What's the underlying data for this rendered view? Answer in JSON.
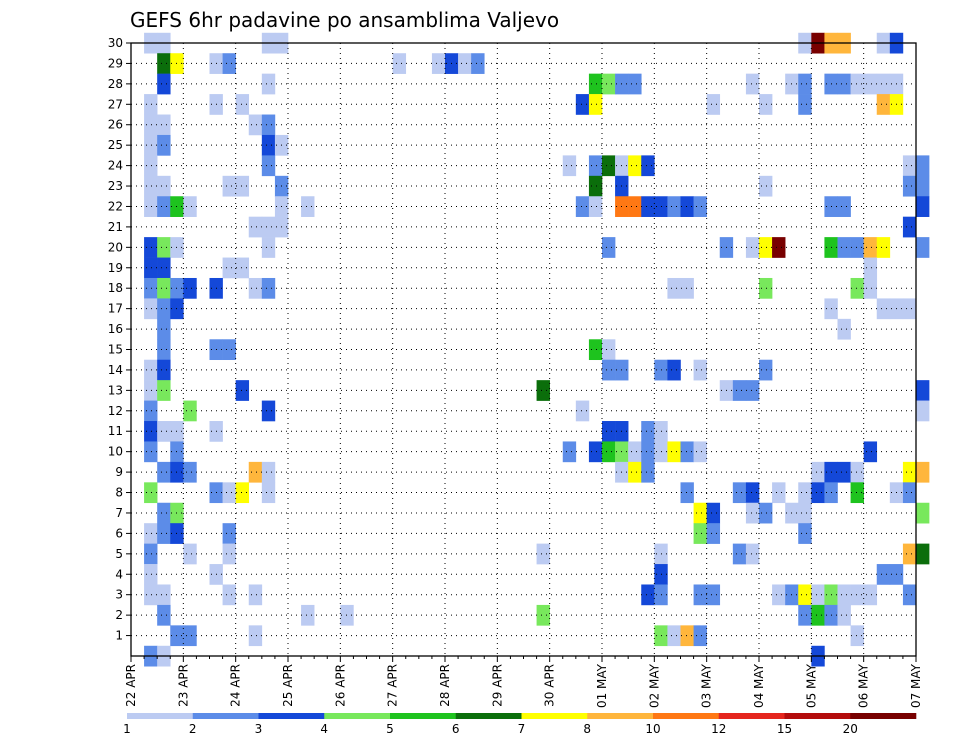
{
  "chart_data": {
    "type": "heatmap",
    "title": "GEFS 6hr padavine po ansamblima Valjevo",
    "xlabel": "",
    "ylabel": "",
    "x_tick_labels": [
      "22 APR",
      "23 APR",
      "24 APR",
      "25 APR",
      "26 APR",
      "27 APR",
      "28 APR",
      "29 APR",
      "30 APR",
      "01 MAY",
      "02 MAY",
      "03 MAY",
      "04 MAY",
      "05 MAY",
      "06 MAY",
      "07 MAY"
    ],
    "y_tick_labels": [
      "1",
      "2",
      "3",
      "4",
      "5",
      "6",
      "7",
      "8",
      "9",
      "10",
      "11",
      "12",
      "13",
      "14",
      "15",
      "16",
      "17",
      "18",
      "19",
      "20",
      "21",
      "22",
      "23",
      "24",
      "25",
      "26",
      "27",
      "28",
      "29",
      "30"
    ],
    "x_range": [
      "2024-04-22T00",
      "2024-05-07T00"
    ],
    "time_step_hours": 6,
    "y_range": [
      0,
      30
    ],
    "grid": "dotted",
    "colorbar": {
      "tick_labels": [
        "1",
        "2",
        "3",
        "4",
        "5",
        "6",
        "7",
        "8",
        "10",
        "12",
        "15",
        "20"
      ],
      "colors": [
        "#bccbf2",
        "#5c8ce8",
        "#1448d8",
        "#78e85c",
        "#1ec31e",
        "#0b6e0b",
        "#ffff00",
        "#ffb63c",
        "#ff7814",
        "#e5261e",
        "#b40c0c",
        "#780000"
      ]
    },
    "cells_level_index_note": "each cell: [member, time_step_index_from_22APR00, color_level_index]",
    "cells": [
      [
        30,
        1,
        0
      ],
      [
        30,
        2,
        0
      ],
      [
        30,
        10,
        0
      ],
      [
        30,
        11,
        0
      ],
      [
        30,
        51,
        0
      ],
      [
        30,
        52,
        11
      ],
      [
        30,
        53,
        7
      ],
      [
        30,
        54,
        7
      ],
      [
        30,
        57,
        0
      ],
      [
        30,
        58,
        2
      ],
      [
        29,
        2,
        5
      ],
      [
        29,
        3,
        6
      ],
      [
        29,
        6,
        0
      ],
      [
        29,
        7,
        1
      ],
      [
        29,
        20,
        0
      ],
      [
        29,
        23,
        0
      ],
      [
        29,
        24,
        2
      ],
      [
        29,
        25,
        0
      ],
      [
        29,
        26,
        1
      ],
      [
        28,
        2,
        2
      ],
      [
        28,
        10,
        0
      ],
      [
        28,
        35,
        4
      ],
      [
        28,
        36,
        3
      ],
      [
        28,
        37,
        1
      ],
      [
        28,
        38,
        1
      ],
      [
        28,
        47,
        0
      ],
      [
        28,
        50,
        0
      ],
      [
        28,
        51,
        1
      ],
      [
        28,
        53,
        1
      ],
      [
        28,
        54,
        1
      ],
      [
        28,
        55,
        0
      ],
      [
        28,
        56,
        0
      ],
      [
        28,
        57,
        0
      ],
      [
        28,
        58,
        0
      ],
      [
        27,
        1,
        0
      ],
      [
        27,
        6,
        0
      ],
      [
        27,
        8,
        0
      ],
      [
        27,
        34,
        2
      ],
      [
        27,
        35,
        6
      ],
      [
        27,
        44,
        0
      ],
      [
        27,
        48,
        0
      ],
      [
        27,
        51,
        1
      ],
      [
        27,
        57,
        7
      ],
      [
        27,
        58,
        6
      ],
      [
        26,
        1,
        0
      ],
      [
        26,
        2,
        0
      ],
      [
        26,
        9,
        0
      ],
      [
        26,
        10,
        1
      ],
      [
        25,
        1,
        0
      ],
      [
        25,
        2,
        1
      ],
      [
        25,
        10,
        2
      ],
      [
        25,
        11,
        0
      ],
      [
        24,
        1,
        0
      ],
      [
        24,
        10,
        1
      ],
      [
        24,
        33,
        0
      ],
      [
        24,
        35,
        1
      ],
      [
        24,
        36,
        5
      ],
      [
        24,
        37,
        0
      ],
      [
        24,
        38,
        6
      ],
      [
        24,
        39,
        2
      ],
      [
        24,
        59,
        0
      ],
      [
        24,
        60,
        1
      ],
      [
        23,
        1,
        0
      ],
      [
        23,
        2,
        0
      ],
      [
        23,
        7,
        0
      ],
      [
        23,
        8,
        0
      ],
      [
        23,
        11,
        1
      ],
      [
        23,
        35,
        5
      ],
      [
        23,
        37,
        2
      ],
      [
        23,
        48,
        0
      ],
      [
        23,
        59,
        1
      ],
      [
        23,
        60,
        1
      ],
      [
        22,
        1,
        0
      ],
      [
        22,
        2,
        1
      ],
      [
        22,
        3,
        4
      ],
      [
        22,
        4,
        0
      ],
      [
        22,
        11,
        0
      ],
      [
        22,
        13,
        0
      ],
      [
        22,
        34,
        1
      ],
      [
        22,
        35,
        0
      ],
      [
        22,
        37,
        8
      ],
      [
        22,
        38,
        8
      ],
      [
        22,
        39,
        2
      ],
      [
        22,
        40,
        2
      ],
      [
        22,
        41,
        1
      ],
      [
        22,
        42,
        2
      ],
      [
        22,
        43,
        1
      ],
      [
        22,
        53,
        1
      ],
      [
        22,
        54,
        1
      ],
      [
        22,
        60,
        2
      ],
      [
        21,
        9,
        0
      ],
      [
        21,
        10,
        0
      ],
      [
        21,
        11,
        0
      ],
      [
        21,
        59,
        2
      ],
      [
        20,
        1,
        2
      ],
      [
        20,
        2,
        3
      ],
      [
        20,
        3,
        0
      ],
      [
        20,
        10,
        0
      ],
      [
        20,
        36,
        1
      ],
      [
        20,
        45,
        1
      ],
      [
        20,
        47,
        0
      ],
      [
        20,
        48,
        6
      ],
      [
        20,
        49,
        11
      ],
      [
        20,
        53,
        4
      ],
      [
        20,
        54,
        1
      ],
      [
        20,
        55,
        1
      ],
      [
        20,
        56,
        7
      ],
      [
        20,
        57,
        6
      ],
      [
        20,
        60,
        1
      ],
      [
        19,
        1,
        2
      ],
      [
        19,
        2,
        2
      ],
      [
        19,
        7,
        0
      ],
      [
        19,
        8,
        0
      ],
      [
        19,
        56,
        0
      ],
      [
        18,
        1,
        1
      ],
      [
        18,
        2,
        3
      ],
      [
        18,
        3,
        1
      ],
      [
        18,
        4,
        2
      ],
      [
        18,
        6,
        2
      ],
      [
        18,
        9,
        0
      ],
      [
        18,
        10,
        1
      ],
      [
        18,
        41,
        0
      ],
      [
        18,
        42,
        0
      ],
      [
        18,
        48,
        3
      ],
      [
        18,
        55,
        3
      ],
      [
        18,
        56,
        0
      ],
      [
        17,
        1,
        0
      ],
      [
        17,
        2,
        1
      ],
      [
        17,
        3,
        2
      ],
      [
        17,
        53,
        0
      ],
      [
        17,
        57,
        0
      ],
      [
        17,
        58,
        0
      ],
      [
        17,
        59,
        0
      ],
      [
        16,
        2,
        1
      ],
      [
        16,
        54,
        0
      ],
      [
        15,
        2,
        1
      ],
      [
        15,
        6,
        1
      ],
      [
        15,
        7,
        1
      ],
      [
        15,
        35,
        4
      ],
      [
        15,
        36,
        0
      ],
      [
        14,
        1,
        0
      ],
      [
        14,
        2,
        2
      ],
      [
        14,
        36,
        1
      ],
      [
        14,
        37,
        1
      ],
      [
        14,
        40,
        1
      ],
      [
        14,
        41,
        2
      ],
      [
        14,
        43,
        0
      ],
      [
        14,
        48,
        1
      ],
      [
        13,
        1,
        0
      ],
      [
        13,
        2,
        3
      ],
      [
        13,
        8,
        2
      ],
      [
        13,
        31,
        5
      ],
      [
        13,
        45,
        0
      ],
      [
        13,
        46,
        1
      ],
      [
        13,
        47,
        1
      ],
      [
        13,
        60,
        2
      ],
      [
        12,
        1,
        1
      ],
      [
        12,
        4,
        3
      ],
      [
        12,
        10,
        2
      ],
      [
        12,
        34,
        0
      ],
      [
        12,
        60,
        0
      ],
      [
        11,
        1,
        2
      ],
      [
        11,
        2,
        0
      ],
      [
        11,
        3,
        0
      ],
      [
        11,
        6,
        0
      ],
      [
        11,
        36,
        2
      ],
      [
        11,
        37,
        2
      ],
      [
        11,
        39,
        1
      ],
      [
        11,
        40,
        0
      ],
      [
        10,
        1,
        1
      ],
      [
        10,
        3,
        1
      ],
      [
        10,
        33,
        1
      ],
      [
        10,
        35,
        2
      ],
      [
        10,
        36,
        4
      ],
      [
        10,
        37,
        3
      ],
      [
        10,
        38,
        0
      ],
      [
        10,
        39,
        1
      ],
      [
        10,
        40,
        0
      ],
      [
        10,
        41,
        6
      ],
      [
        10,
        42,
        1
      ],
      [
        10,
        43,
        0
      ],
      [
        10,
        56,
        2
      ],
      [
        9,
        2,
        1
      ],
      [
        9,
        3,
        2
      ],
      [
        9,
        4,
        1
      ],
      [
        9,
        9,
        7
      ],
      [
        9,
        10,
        0
      ],
      [
        9,
        37,
        0
      ],
      [
        9,
        38,
        6
      ],
      [
        9,
        39,
        1
      ],
      [
        9,
        52,
        0
      ],
      [
        9,
        53,
        2
      ],
      [
        9,
        54,
        2
      ],
      [
        9,
        55,
        0
      ],
      [
        9,
        59,
        6
      ],
      [
        9,
        60,
        7
      ],
      [
        8,
        1,
        3
      ],
      [
        8,
        6,
        1
      ],
      [
        8,
        7,
        0
      ],
      [
        8,
        8,
        6
      ],
      [
        8,
        10,
        0
      ],
      [
        8,
        42,
        1
      ],
      [
        8,
        46,
        1
      ],
      [
        8,
        47,
        2
      ],
      [
        8,
        49,
        0
      ],
      [
        8,
        51,
        0
      ],
      [
        8,
        52,
        2
      ],
      [
        8,
        53,
        1
      ],
      [
        8,
        55,
        4
      ],
      [
        8,
        58,
        0
      ],
      [
        8,
        59,
        1
      ],
      [
        7,
        2,
        1
      ],
      [
        7,
        3,
        3
      ],
      [
        7,
        43,
        6
      ],
      [
        7,
        44,
        2
      ],
      [
        7,
        47,
        0
      ],
      [
        7,
        48,
        1
      ],
      [
        7,
        50,
        0
      ],
      [
        7,
        51,
        0
      ],
      [
        7,
        60,
        3
      ],
      [
        6,
        1,
        0
      ],
      [
        6,
        2,
        1
      ],
      [
        6,
        3,
        2
      ],
      [
        6,
        7,
        1
      ],
      [
        6,
        43,
        3
      ],
      [
        6,
        44,
        1
      ],
      [
        6,
        51,
        1
      ],
      [
        5,
        1,
        1
      ],
      [
        5,
        4,
        0
      ],
      [
        5,
        7,
        0
      ],
      [
        5,
        31,
        0
      ],
      [
        5,
        40,
        0
      ],
      [
        5,
        46,
        1
      ],
      [
        5,
        47,
        0
      ],
      [
        5,
        59,
        7
      ],
      [
        5,
        60,
        5
      ],
      [
        4,
        1,
        0
      ],
      [
        4,
        6,
        0
      ],
      [
        4,
        40,
        2
      ],
      [
        4,
        57,
        1
      ],
      [
        4,
        58,
        1
      ],
      [
        3,
        1,
        0
      ],
      [
        3,
        2,
        0
      ],
      [
        3,
        7,
        0
      ],
      [
        3,
        9,
        0
      ],
      [
        3,
        39,
        2
      ],
      [
        3,
        40,
        1
      ],
      [
        3,
        43,
        1
      ],
      [
        3,
        44,
        1
      ],
      [
        3,
        49,
        0
      ],
      [
        3,
        50,
        1
      ],
      [
        3,
        51,
        6
      ],
      [
        3,
        52,
        0
      ],
      [
        3,
        53,
        3
      ],
      [
        3,
        54,
        0
      ],
      [
        3,
        55,
        0
      ],
      [
        3,
        56,
        0
      ],
      [
        3,
        59,
        1
      ],
      [
        2,
        2,
        1
      ],
      [
        2,
        13,
        0
      ],
      [
        2,
        16,
        0
      ],
      [
        2,
        31,
        3
      ],
      [
        2,
        51,
        1
      ],
      [
        2,
        52,
        4
      ],
      [
        2,
        53,
        1
      ],
      [
        2,
        54,
        0
      ],
      [
        1,
        3,
        1
      ],
      [
        1,
        4,
        1
      ],
      [
        1,
        9,
        0
      ],
      [
        1,
        40,
        3
      ],
      [
        1,
        41,
        0
      ],
      [
        1,
        42,
        7
      ],
      [
        1,
        43,
        1
      ],
      [
        1,
        55,
        0
      ],
      [
        0,
        1,
        1
      ],
      [
        0,
        2,
        0
      ],
      [
        0,
        52,
        2
      ]
    ]
  }
}
